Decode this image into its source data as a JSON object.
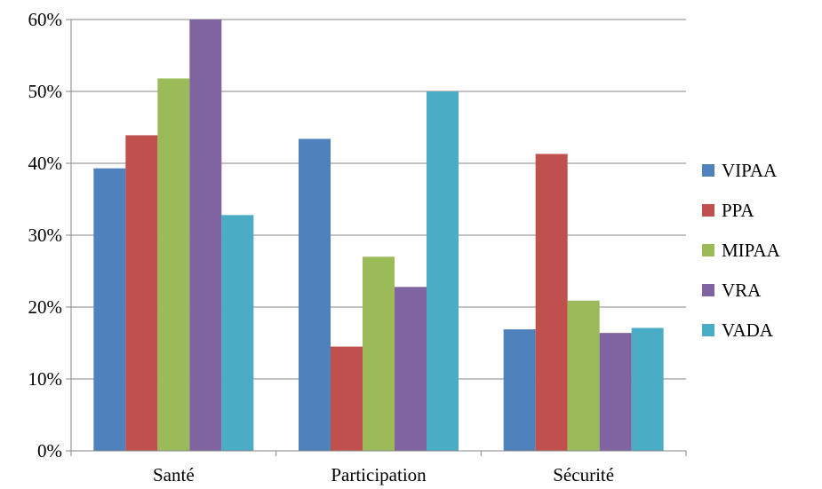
{
  "chart_data": {
    "type": "bar",
    "title": "",
    "xlabel": "",
    "ylabel": "",
    "categories": [
      "Santé",
      "Participation",
      "Sécurité"
    ],
    "ylim": [
      0,
      60
    ],
    "yticks": [
      0,
      10,
      20,
      30,
      40,
      50,
      60
    ],
    "ytick_labels": [
      "0%",
      "10%",
      "20%",
      "30%",
      "40%",
      "50%",
      "60%"
    ],
    "grid": true,
    "legend_position": "right",
    "series": [
      {
        "name": "VIPAA",
        "color": "#4f81bd",
        "values": [
          39.3,
          43.4,
          16.9
        ]
      },
      {
        "name": "PPA",
        "color": "#c0504d",
        "values": [
          43.9,
          14.5,
          41.3
        ]
      },
      {
        "name": "MIPAA",
        "color": "#9bbb59",
        "values": [
          51.8,
          27.0,
          20.9
        ]
      },
      {
        "name": "VRA",
        "color": "#8064a2",
        "values": [
          60.0,
          22.8,
          16.4
        ]
      },
      {
        "name": "VADA",
        "color": "#4bacc6",
        "values": [
          32.8,
          50.0,
          17.1
        ]
      }
    ]
  }
}
